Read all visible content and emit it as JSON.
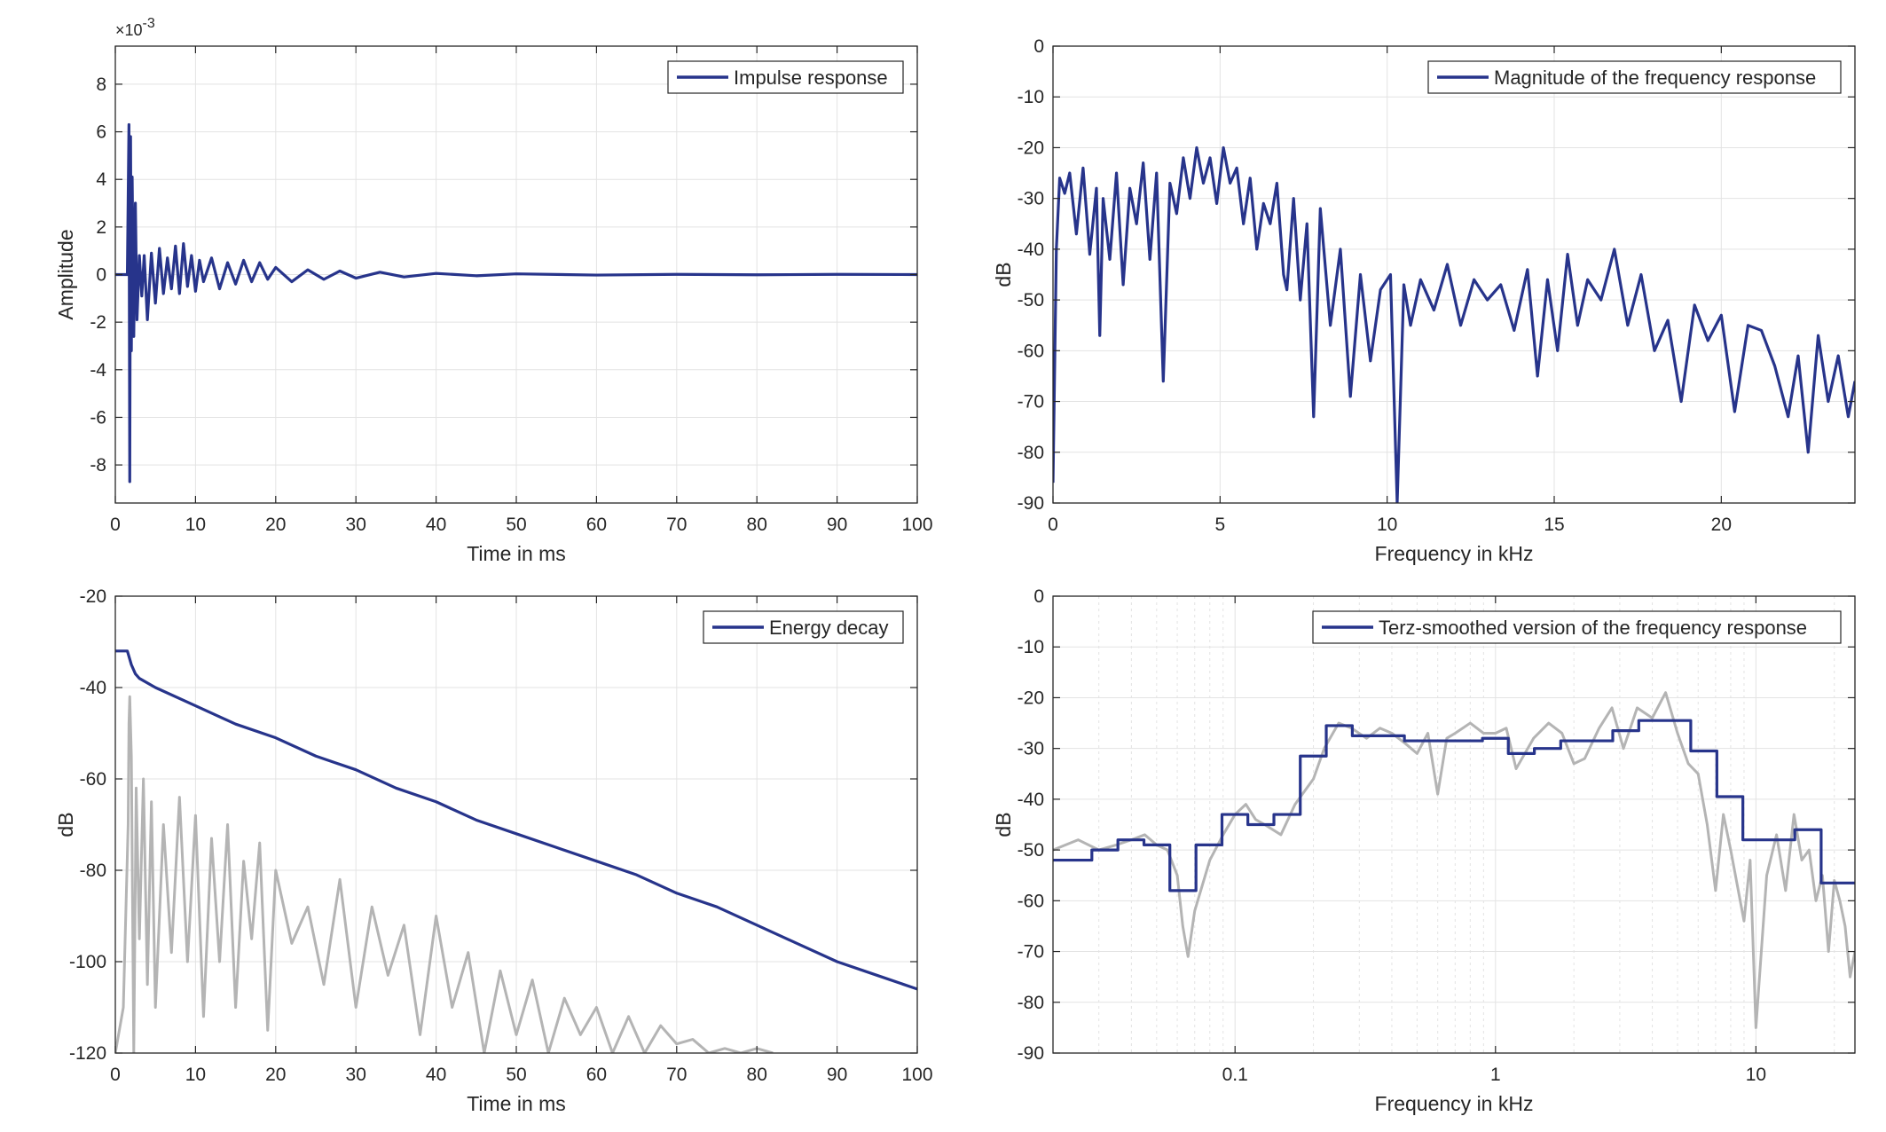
{
  "colors": {
    "primary": "#27348b",
    "secondary": "#b4b4b4",
    "grid": "#e3e3e3",
    "axis": "#262626"
  },
  "chart_data": [
    {
      "type": "line",
      "legend": "Impulse response",
      "legend_position": "top-right",
      "xlabel": "Time in ms",
      "ylabel": "Amplitude",
      "y_exponent": "×10",
      "y_exponent_power": "-3",
      "xlim": [
        0,
        100
      ],
      "ylim": [
        -9.6,
        9.6
      ],
      "xticks": [
        0,
        10,
        20,
        30,
        40,
        50,
        60,
        70,
        80,
        90,
        100
      ],
      "xticklabels": [
        "0",
        "10",
        "20",
        "30",
        "40",
        "50",
        "60",
        "70",
        "80",
        "90",
        "100"
      ],
      "yticks": [
        -8,
        -6,
        -4,
        -2,
        0,
        2,
        4,
        6,
        8
      ],
      "yticklabels": [
        "-8",
        "-6",
        "-4",
        "-2",
        "0",
        "2",
        "4",
        "6",
        "8"
      ],
      "grid": true,
      "series": [
        {
          "name": "Impulse response",
          "x": [
            0,
            1.5,
            1.7,
            1.8,
            1.9,
            2.0,
            2.1,
            2.3,
            2.5,
            2.7,
            3.0,
            3.3,
            3.6,
            4.0,
            4.5,
            5.0,
            5.5,
            6.0,
            6.5,
            7.0,
            7.5,
            8.0,
            8.5,
            9.0,
            9.5,
            10.0,
            10.5,
            11.0,
            12.0,
            13.0,
            14.0,
            15.0,
            16.0,
            17.0,
            18.0,
            19.0,
            20.0,
            22.0,
            24.0,
            26.0,
            28.0,
            30.0,
            33.0,
            36.0,
            40.0,
            45.0,
            50.0,
            60.0,
            70.0,
            80.0,
            90.0,
            100.0
          ],
          "y": [
            0,
            0,
            6.3,
            -8.7,
            5.8,
            -3.2,
            4.1,
            -2.6,
            3.0,
            -1.9,
            0.8,
            -0.9,
            0.8,
            -1.9,
            0.9,
            -1.2,
            1.1,
            -0.8,
            0.7,
            -0.6,
            1.2,
            -0.8,
            1.3,
            -0.5,
            0.8,
            -0.7,
            0.6,
            -0.3,
            0.7,
            -0.6,
            0.5,
            -0.4,
            0.6,
            -0.3,
            0.5,
            -0.2,
            0.3,
            -0.3,
            0.2,
            -0.2,
            0.15,
            -0.15,
            0.1,
            -0.1,
            0.05,
            -0.05,
            0.03,
            -0.02,
            0.01,
            -0.01,
            0.01,
            0
          ]
        }
      ]
    },
    {
      "type": "line",
      "legend": "Magnitude of the frequency response",
      "legend_position": "top-right",
      "xlabel": "Frequency in kHz",
      "ylabel": "dB",
      "xlim": [
        0,
        24
      ],
      "ylim": [
        -90,
        0
      ],
      "xticks": [
        0,
        5,
        10,
        15,
        20
      ],
      "xticklabels": [
        "0",
        "5",
        "10",
        "15",
        "20"
      ],
      "yticks": [
        0,
        -10,
        -20,
        -30,
        -40,
        -50,
        -60,
        -70,
        -80,
        -90
      ],
      "yticklabels": [
        "0",
        "-10",
        "-20",
        "-30",
        "-40",
        "-50",
        "-60",
        "-70",
        "-80",
        "-90"
      ],
      "grid": true,
      "series": [
        {
          "name": "Magnitude of the frequency response",
          "x": [
            0,
            0.1,
            0.2,
            0.35,
            0.5,
            0.7,
            0.9,
            1.1,
            1.3,
            1.4,
            1.5,
            1.7,
            1.9,
            2.1,
            2.3,
            2.5,
            2.7,
            2.9,
            3.1,
            3.3,
            3.5,
            3.7,
            3.9,
            4.1,
            4.3,
            4.5,
            4.7,
            4.9,
            5.1,
            5.3,
            5.5,
            5.7,
            5.9,
            6.1,
            6.3,
            6.5,
            6.7,
            6.9,
            7.0,
            7.2,
            7.4,
            7.6,
            7.8,
            8.0,
            8.3,
            8.6,
            8.9,
            9.2,
            9.5,
            9.8,
            10.1,
            10.3,
            10.5,
            10.7,
            11.0,
            11.4,
            11.8,
            12.2,
            12.6,
            13.0,
            13.4,
            13.8,
            14.2,
            14.5,
            14.8,
            15.1,
            15.4,
            15.7,
            16.0,
            16.4,
            16.8,
            17.2,
            17.6,
            18.0,
            18.4,
            18.8,
            19.2,
            19.6,
            20.0,
            20.4,
            20.8,
            21.2,
            21.6,
            22.0,
            22.3,
            22.6,
            22.9,
            23.2,
            23.5,
            23.8,
            24.0
          ],
          "y": [
            -86,
            -40,
            -26,
            -29,
            -25,
            -37,
            -24,
            -41,
            -28,
            -57,
            -30,
            -42,
            -25,
            -47,
            -28,
            -35,
            -23,
            -42,
            -25,
            -66,
            -27,
            -33,
            -22,
            -30,
            -20,
            -27,
            -22,
            -31,
            -20,
            -27,
            -24,
            -35,
            -26,
            -40,
            -31,
            -35,
            -27,
            -45,
            -48,
            -30,
            -50,
            -35,
            -73,
            -32,
            -55,
            -40,
            -69,
            -45,
            -62,
            -48,
            -45,
            -90,
            -47,
            -55,
            -46,
            -52,
            -43,
            -55,
            -46,
            -50,
            -47,
            -56,
            -44,
            -65,
            -46,
            -60,
            -41,
            -55,
            -46,
            -50,
            -40,
            -55,
            -45,
            -60,
            -54,
            -70,
            -51,
            -58,
            -53,
            -72,
            -55,
            -56,
            -63,
            -73,
            -61,
            -80,
            -57,
            -70,
            -61,
            -73,
            -66
          ]
        }
      ]
    },
    {
      "type": "line",
      "legend": "Energy decay",
      "legend_position": "top-right",
      "xlabel": "Time in ms",
      "ylabel": "dB",
      "xlim": [
        0,
        100
      ],
      "ylim": [
        -120,
        -20
      ],
      "xticks": [
        0,
        10,
        20,
        30,
        40,
        50,
        60,
        70,
        80,
        90,
        100
      ],
      "xticklabels": [
        "0",
        "10",
        "20",
        "30",
        "40",
        "50",
        "60",
        "70",
        "80",
        "90",
        "100"
      ],
      "yticks": [
        -20,
        -40,
        -60,
        -80,
        -100,
        -120
      ],
      "yticklabels": [
        "-20",
        "-40",
        "-60",
        "-80",
        "-100",
        "-120"
      ],
      "grid": true,
      "series": [
        {
          "name": "Energy decay",
          "x": [
            0,
            1.5,
            2.0,
            2.5,
            3.0,
            5.0,
            10.0,
            15.0,
            20.0,
            25.0,
            30.0,
            35.0,
            40.0,
            45.0,
            50.0,
            55.0,
            60.0,
            65.0,
            70.0,
            75.0,
            80.0,
            85.0,
            90.0,
            95.0,
            100.0
          ],
          "y": [
            -32,
            -32,
            -35,
            -37,
            -38,
            -40,
            -44,
            -48,
            -51,
            -55,
            -58,
            -62,
            -65,
            -69,
            -72,
            -75,
            -78,
            -81,
            -85,
            -88,
            -92,
            -96,
            -100,
            -103,
            -106
          ]
        },
        {
          "x": [
            0,
            1.0,
            1.6,
            1.7,
            1.8,
            2.0,
            2.3,
            2.6,
            3.0,
            3.5,
            4.0,
            4.5,
            5.0,
            6.0,
            7.0,
            8.0,
            9.0,
            10.0,
            11.0,
            12.0,
            13.0,
            14.0,
            15.0,
            16.0,
            17.0,
            18.0,
            19.0,
            20.0,
            22.0,
            24.0,
            26.0,
            28.0,
            30.0,
            32.0,
            34.0,
            36.0,
            38.0,
            40.0,
            42.0,
            44.0,
            46.0,
            48.0,
            50.0,
            52.0,
            54.0,
            56.0,
            58.0,
            60.0,
            62.0,
            64.0,
            66.0,
            68.0,
            70.0,
            72.0,
            74.0,
            76.0,
            78.0,
            80.0,
            82.0
          ],
          "y": [
            -120,
            -110,
            -70,
            -48,
            -42,
            -55,
            -120,
            -62,
            -95,
            -60,
            -105,
            -65,
            -110,
            -70,
            -98,
            -64,
            -100,
            -68,
            -112,
            -73,
            -100,
            -70,
            -110,
            -78,
            -95,
            -74,
            -115,
            -80,
            -96,
            -88,
            -105,
            -82,
            -110,
            -88,
            -103,
            -92,
            -116,
            -90,
            -110,
            -98,
            -120,
            -102,
            -116,
            -104,
            -120,
            -108,
            -116,
            -110,
            -120,
            -112,
            -120,
            -114,
            -118,
            -117,
            -120,
            -119,
            -120,
            -119,
            -120
          ]
        }
      ]
    },
    {
      "type": "line",
      "legend": "Terz-smoothed version of the frequency response",
      "legend_position": "top-right",
      "xlabel": "Frequency in kHz",
      "ylabel": "dB",
      "xscale": "log",
      "xlim": [
        0.02,
        24
      ],
      "ylim": [
        -90,
        0
      ],
      "xticks": [
        0.1,
        1,
        10
      ],
      "xticklabels": [
        "0.1",
        "1",
        "10"
      ],
      "yticks": [
        0,
        -10,
        -20,
        -30,
        -40,
        -50,
        -60,
        -70,
        -80,
        -90
      ],
      "yticklabels": [
        "0",
        "-10",
        "-20",
        "-30",
        "-40",
        "-50",
        "-60",
        "-70",
        "-80",
        "-90"
      ],
      "grid": true,
      "series": [
        {
          "name": "Terz-smoothed version of the frequency response",
          "x": [
            0.02,
            0.0282,
            0.0282,
            0.0355,
            0.0355,
            0.0447,
            0.0447,
            0.0562,
            0.0562,
            0.0708,
            0.0708,
            0.0891,
            0.0891,
            0.112,
            0.112,
            0.141,
            0.141,
            0.178,
            0.178,
            0.224,
            0.224,
            0.282,
            0.282,
            0.355,
            0.355,
            0.447,
            0.447,
            0.562,
            0.562,
            0.708,
            0.708,
            0.891,
            0.891,
            1.12,
            1.12,
            1.41,
            1.41,
            1.78,
            1.78,
            2.24,
            2.24,
            2.82,
            2.82,
            3.55,
            3.55,
            4.47,
            4.47,
            5.62,
            5.62,
            7.08,
            7.08,
            8.91,
            8.91,
            11.2,
            11.2,
            14.1,
            14.1,
            17.8,
            17.8,
            22.4,
            22.4,
            24
          ],
          "y": [
            -52,
            -52,
            -50,
            -50,
            -48,
            -48,
            -49,
            -49,
            -58,
            -58,
            -49,
            -49,
            -43,
            -43,
            -45,
            -45,
            -43,
            -43,
            -31.5,
            -31.5,
            -25.5,
            -25.5,
            -27.5,
            -27.5,
            -27.5,
            -27.5,
            -28.5,
            -28.5,
            -28.5,
            -28.5,
            -28.5,
            -28.5,
            -28,
            -28,
            -31,
            -31,
            -30,
            -30,
            -28.5,
            -28.5,
            -28.5,
            -28.5,
            -26.5,
            -26.5,
            -24.5,
            -24.5,
            -24.5,
            -24.5,
            -30.5,
            -30.5,
            -39.5,
            -39.5,
            -48,
            -48,
            -48,
            -48,
            -46,
            -46,
            -56.5,
            -56.5,
            -56.5,
            -56.5
          ]
        },
        {
          "x": [
            0.02,
            0.025,
            0.03,
            0.035,
            0.04,
            0.045,
            0.05,
            0.055,
            0.06,
            0.063,
            0.066,
            0.07,
            0.08,
            0.09,
            0.1,
            0.11,
            0.12,
            0.13,
            0.15,
            0.17,
            0.2,
            0.22,
            0.25,
            0.28,
            0.32,
            0.36,
            0.4,
            0.45,
            0.5,
            0.55,
            0.6,
            0.65,
            0.7,
            0.8,
            0.9,
            1.0,
            1.1,
            1.2,
            1.4,
            1.6,
            1.8,
            2.0,
            2.2,
            2.5,
            2.8,
            3.1,
            3.5,
            4.0,
            4.5,
            5.0,
            5.5,
            6.0,
            6.5,
            7.0,
            7.5,
            8.0,
            9.0,
            9.5,
            10.0,
            11.0,
            12.0,
            13.0,
            14.0,
            15.0,
            16.0,
            17.0,
            18.0,
            19.0,
            20.0,
            21.0,
            22.0,
            23.0,
            24.0
          ],
          "y": [
            -50,
            -48,
            -50,
            -49,
            -48,
            -47,
            -49,
            -50,
            -55,
            -65,
            -71,
            -62,
            -52,
            -47,
            -43,
            -41,
            -44,
            -45,
            -47,
            -41,
            -36,
            -30,
            -25,
            -26,
            -28,
            -26,
            -27,
            -29,
            -31,
            -27,
            -39,
            -28,
            -27,
            -25,
            -27,
            -27,
            -26,
            -34,
            -28,
            -25,
            -27,
            -33,
            -32,
            -26,
            -22,
            -30,
            -22,
            -24,
            -19,
            -27,
            -33,
            -35,
            -45,
            -58,
            -43,
            -50,
            -64,
            -52,
            -85,
            -55,
            -47,
            -58,
            -43,
            -52,
            -50,
            -60,
            -55,
            -70,
            -56,
            -60,
            -65,
            -75,
            -70
          ]
        }
      ]
    }
  ]
}
